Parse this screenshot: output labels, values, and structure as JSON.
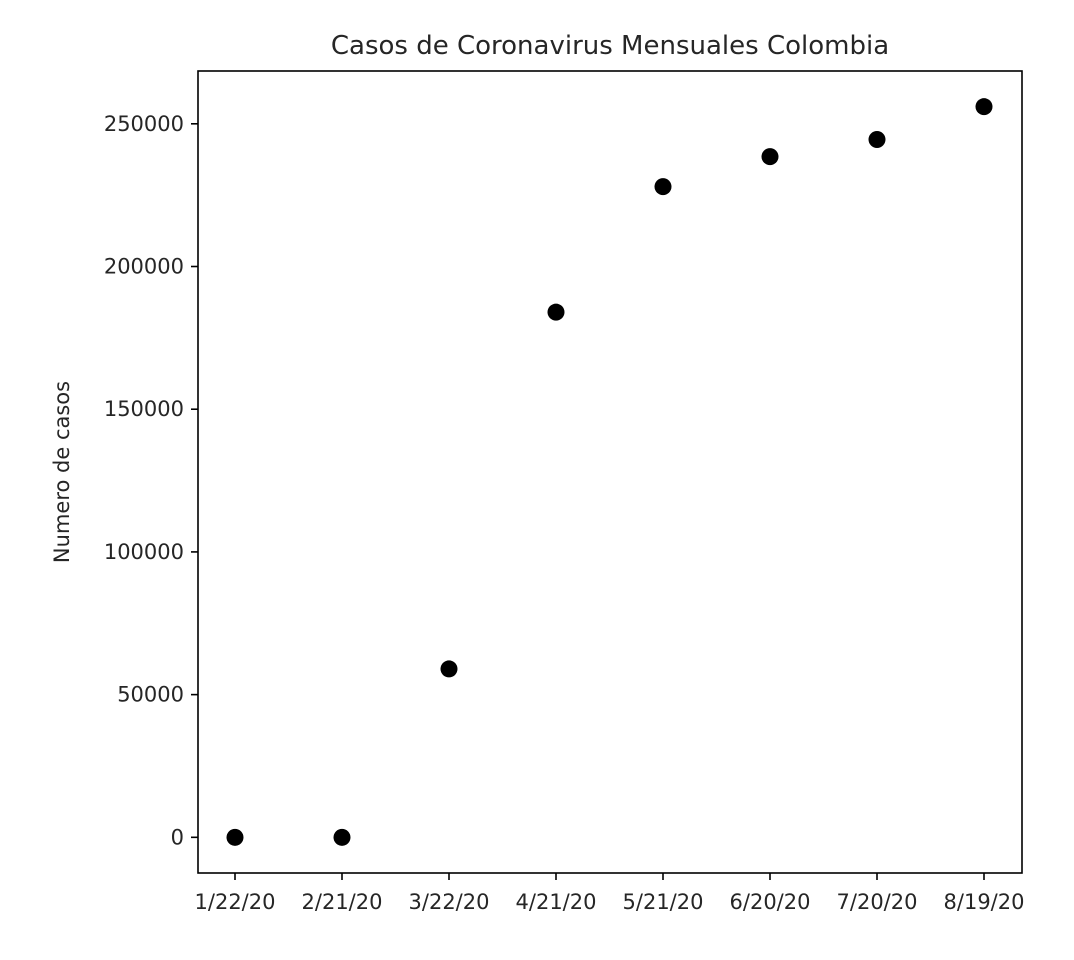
{
  "chart_data": {
    "type": "scatter",
    "title": "Casos de Coronavirus Mensuales Colombia",
    "xlabel": "",
    "ylabel": "Numero de casos",
    "x": [
      "1/22/20",
      "2/21/20",
      "3/22/20",
      "4/21/20",
      "5/21/20",
      "6/20/20",
      "7/20/20",
      "8/19/20"
    ],
    "series": [
      {
        "values": [
          0,
          0,
          59000,
          184000,
          228000,
          238500,
          244500,
          256000
        ]
      }
    ],
    "x_ticks": [
      "1/22/20",
      "2/21/20",
      "3/22/20",
      "4/21/20",
      "5/21/20",
      "6/20/20",
      "7/20/20",
      "8/19/20"
    ],
    "y_ticks": [
      0,
      50000,
      100000,
      150000,
      200000,
      250000
    ],
    "ylim": [
      -12500,
      268500
    ],
    "grid": false,
    "legend": "none",
    "colors": {
      "marker": "#000000"
    }
  }
}
